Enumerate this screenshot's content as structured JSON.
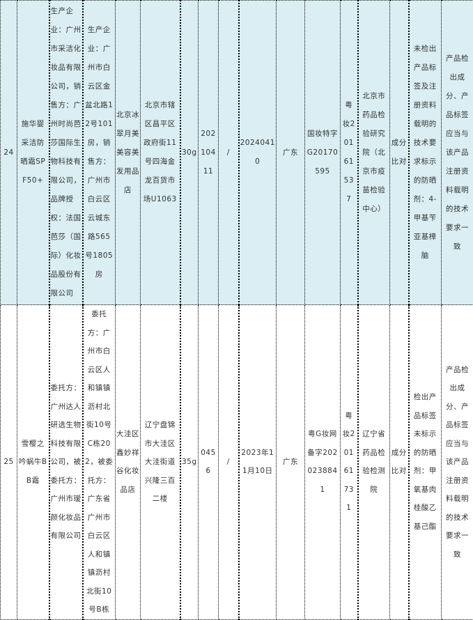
{
  "rows": [
    {
      "no": "24",
      "product": "施华婴 采洁防晒霜SPF50+",
      "manufacturer": "生产企业：广州市采洁化妆品有限公司，销售方：广州时尚芭莎国际生物科技有限公司，品牌授权：法国芭莎（国际）化妆品股份有限公司",
      "address": "生产企业：广州市白云区金盆北路12号101房，销售方：广州市白云区云城东路565号1805房",
      "seller": "北京冰翠月美美容美发用品店",
      "seller_address": "北京市辖区昌平区政府街11号四海金龙百货市场U1063",
      "spec": "30g",
      "batch": "20210411",
      "field9": "/",
      "date": "20240410",
      "origin": "广东",
      "license": "国妆特字G20170595",
      "permit": "粤妆20161537",
      "lab": "北京市药品检验研究院（北京市疫苗检验中心）",
      "item": "成分比对",
      "result": "未检出产品标签及注册资料载明的技术要求标示的防晒剂：4-甲基苄亚基樟脑",
      "requirement": "产品检出成分、产品标签应当与该产品注册资料载明的技术要求一致"
    },
    {
      "no": "25",
      "product": "雪樱之吟蜗牛BB霜",
      "manufacturer": "委托方：广州达人研选生物科技有限公司，被委托方：广州市瑷颜化妆品有限公司",
      "address": "委托方：广州市白云区人和镇镇沥村北街10号C栋202，被委托方：广东省广州市白云区人和镇镇沥村北街10号B栋",
      "seller": "大洼区鑫妙祥谷化妆品店",
      "seller_address": "辽宁盘锦市大洼区大洼街道兴隆三百二楼",
      "spec": "35g",
      "batch": "0456",
      "field9": "/",
      "date": "2023年11月10日",
      "origin": "广东",
      "license": "粤G妆网备字2020238841",
      "permit": "粤妆20161731",
      "lab": "辽宁省药品检验检测院",
      "item": "成分比对",
      "result": "检出产品标签未标示的防晒剂：甲氧基肉桂酸乙基己酯",
      "requirement": "产品检出成分、产品标签应当与该产品注册资料载明的技术要求一致"
    }
  ],
  "colors": {
    "row_highlight": "#daeef3"
  }
}
